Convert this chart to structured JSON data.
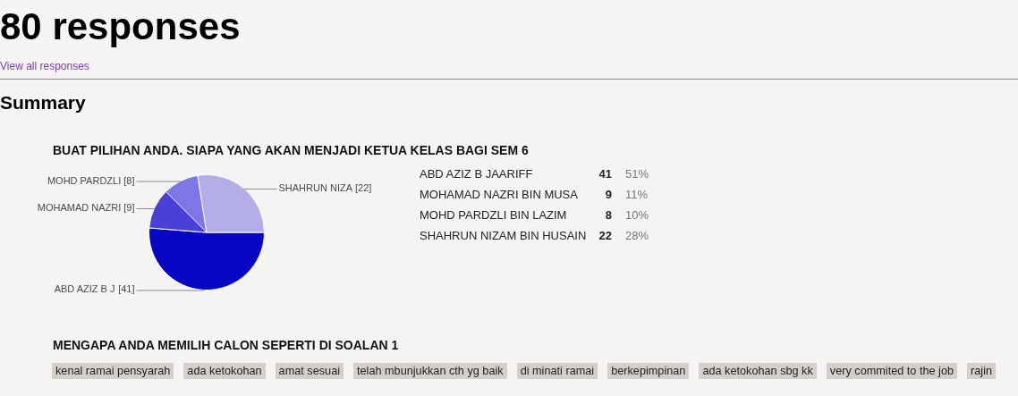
{
  "chart_data": [
    {
      "type": "other",
      "title": "80 responses",
      "subtitle": "View all responses",
      "annotations": [
        "Summary"
      ]
    },
    {
      "type": "pie",
      "title": "BUAT PILIHAN ANDA. SIAPA YANG AKAN MENJADI KETUA KELAS BAGI SEM 6",
      "categories": [
        "ABD AZIZ B J",
        "MOHAMAD NAZRI",
        "MOHD PARDZLI",
        "SHAHRUN NIZA"
      ],
      "values": [
        41,
        9,
        8,
        22
      ],
      "colors": [
        "#0808c4",
        "#4a40d8",
        "#7d78e6",
        "#b3aee6"
      ],
      "value_labels": [
        "[41]",
        "[9]",
        "[8]",
        "[22]"
      ],
      "annotations": [
        "ABD AZIZ B JAARIFF",
        "41",
        "51%",
        "MOHAMAD NAZRI BIN MUSA",
        "9",
        "11%",
        "MOHD PARDZLI BIN LAZIM",
        "8",
        "10%",
        "SHAHRUN NIZAM BIN HUSAIN",
        "22",
        "28%"
      ]
    },
    {
      "type": "other",
      "title": "MENGAPA ANDA MEMILIH CALON SEPERTI DI SOALAN 1",
      "annotations": [
        "kenal ramai pensyarah",
        "ada ketokohan",
        "amat sesuai",
        "telah mbunjukkan cth yg baik",
        "di minati ramai",
        "berkepimpinan",
        "ada ketokohan sbg kk",
        "very commited to the job",
        "rajin"
      ]
    }
  ]
}
